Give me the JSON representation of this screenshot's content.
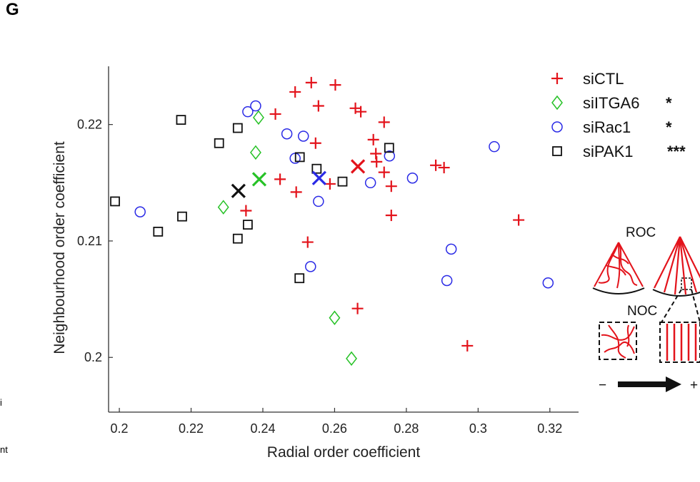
{
  "panel_letter": "G",
  "edge_text": [
    "i",
    "nt"
  ],
  "inset": {
    "roc_label": "ROC",
    "noc_label": "NOC",
    "minus_sign": "−",
    "plus_sign": "+"
  },
  "colors": {
    "siCTL": "#e3131b",
    "siITGA6": "#27c227",
    "siRac1": "#2a2ae6",
    "siPAK1": "#111111"
  },
  "chart_data": {
    "type": "scatter",
    "xlabel": "Radial order coefficient",
    "ylabel": "Neighbourhood order coefficient",
    "xlim": [
      0.197,
      0.328
    ],
    "ylim": [
      0.1953,
      0.225
    ],
    "xticks": [
      "0.2",
      "0.22",
      "0.24",
      "0.26",
      "0.28",
      "0.3",
      "0.32"
    ],
    "yticks": [
      "0.2",
      "0.21",
      "0.22"
    ],
    "legend_position": "top-right",
    "series": [
      {
        "name": "siCTL",
        "significance": "",
        "marker": "plus",
        "points": [
          [
            0.249,
            0.2228
          ],
          [
            0.2535,
            0.2236
          ],
          [
            0.2602,
            0.2234
          ],
          [
            0.2555,
            0.2216
          ],
          [
            0.2658,
            0.2214
          ],
          [
            0.2673,
            0.2211
          ],
          [
            0.2435,
            0.2209
          ],
          [
            0.2738,
            0.2202
          ],
          [
            0.2708,
            0.2187
          ],
          [
            0.2547,
            0.2184
          ],
          [
            0.2715,
            0.2175
          ],
          [
            0.2717,
            0.2168
          ],
          [
            0.2448,
            0.2153
          ],
          [
            0.2738,
            0.2159
          ],
          [
            0.2758,
            0.2147
          ],
          [
            0.2882,
            0.2165
          ],
          [
            0.2905,
            0.2163
          ],
          [
            0.2587,
            0.2149
          ],
          [
            0.2493,
            0.2142
          ],
          [
            0.2353,
            0.2126
          ],
          [
            0.2758,
            0.2122
          ],
          [
            0.3113,
            0.2118
          ],
          [
            0.2525,
            0.2099
          ],
          [
            0.2664,
            0.2042
          ],
          [
            0.297,
            0.201
          ]
        ]
      },
      {
        "name": "siITGA6",
        "significance": "*",
        "marker": "diamond",
        "points": [
          [
            0.2388,
            0.2206
          ],
          [
            0.238,
            0.2176
          ],
          [
            0.229,
            0.2129
          ],
          [
            0.26,
            0.2034
          ],
          [
            0.2647,
            0.1999
          ]
        ]
      },
      {
        "name": "siRac1",
        "significance": "*",
        "marker": "circle",
        "points": [
          [
            0.238,
            0.2216
          ],
          [
            0.2358,
            0.2211
          ],
          [
            0.2467,
            0.2192
          ],
          [
            0.2513,
            0.219
          ],
          [
            0.249,
            0.2171
          ],
          [
            0.2753,
            0.2173
          ],
          [
            0.3045,
            0.2181
          ],
          [
            0.2817,
            0.2154
          ],
          [
            0.27,
            0.215
          ],
          [
            0.2555,
            0.2134
          ],
          [
            0.2058,
            0.2125
          ],
          [
            0.2925,
            0.2093
          ],
          [
            0.2533,
            0.2078
          ],
          [
            0.2913,
            0.2066
          ],
          [
            0.3195,
            0.2064
          ]
        ]
      },
      {
        "name": "siPAK1",
        "significance": "***",
        "marker": "square",
        "points": [
          [
            0.2172,
            0.2204
          ],
          [
            0.233,
            0.2197
          ],
          [
            0.2278,
            0.2184
          ],
          [
            0.2752,
            0.218
          ],
          [
            0.2503,
            0.2172
          ],
          [
            0.255,
            0.2162
          ],
          [
            0.2622,
            0.2151
          ],
          [
            0.1988,
            0.2134
          ],
          [
            0.2175,
            0.2121
          ],
          [
            0.2358,
            0.2114
          ],
          [
            0.2108,
            0.2108
          ],
          [
            0.233,
            0.2102
          ],
          [
            0.2502,
            0.2068
          ]
        ]
      }
    ],
    "means": [
      {
        "series": "siCTL",
        "x": 0.2665,
        "y": 0.2164
      },
      {
        "series": "siITGA6",
        "x": 0.239,
        "y": 0.2153
      },
      {
        "series": "siRac1",
        "x": 0.2557,
        "y": 0.2154
      },
      {
        "series": "siPAK1",
        "x": 0.2332,
        "y": 0.2143
      }
    ]
  }
}
